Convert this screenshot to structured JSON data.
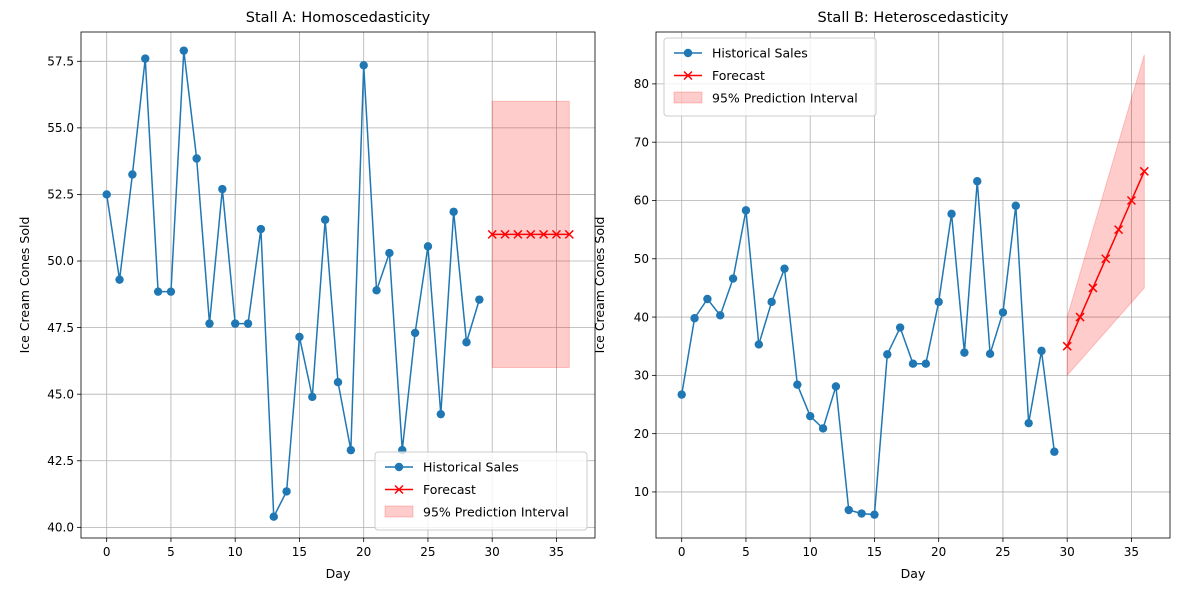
{
  "chart_data": [
    {
      "type": "line",
      "title": "Stall A: Homoscedasticity",
      "xlabel": "Day",
      "ylabel": "Ice Cream Cones Sold",
      "xlim": [
        -2,
        38
      ],
      "ylim": [
        39.6,
        58.6
      ],
      "xticks": [
        0,
        5,
        10,
        15,
        20,
        25,
        30,
        35
      ],
      "xtick_labels": [
        "0",
        "5",
        "10",
        "15",
        "20",
        "25",
        "30",
        "35"
      ],
      "yticks": [
        40.0,
        42.5,
        45.0,
        47.5,
        50.0,
        52.5,
        55.0,
        57.5
      ],
      "ytick_labels": [
        "40.0",
        "42.5",
        "45.0",
        "47.5",
        "50.0",
        "52.5",
        "55.0",
        "57.5"
      ],
      "grid": true,
      "legend_position": "lower-right",
      "series": [
        {
          "name": "Historical Sales",
          "kind": "line-circle",
          "color": "#1f77b4",
          "x": [
            0,
            1,
            2,
            3,
            4,
            5,
            6,
            7,
            8,
            9,
            10,
            11,
            12,
            13,
            14,
            15,
            16,
            17,
            18,
            19,
            20,
            21,
            22,
            23,
            24,
            25,
            26,
            27,
            28,
            29
          ],
          "y": [
            52.5,
            49.3,
            53.25,
            57.6,
            48.85,
            48.85,
            57.9,
            53.85,
            47.65,
            52.7,
            47.65,
            47.65,
            51.2,
            40.4,
            41.35,
            47.15,
            44.9,
            51.55,
            45.45,
            42.9,
            57.35,
            48.9,
            50.3,
            42.9,
            47.3,
            50.55,
            44.25,
            51.85,
            46.95,
            48.55
          ]
        },
        {
          "name": "Forecast",
          "kind": "line-x",
          "color": "#ff0000",
          "x": [
            30,
            31,
            32,
            33,
            34,
            35,
            36
          ],
          "y": [
            51,
            51,
            51,
            51,
            51,
            51,
            51
          ]
        },
        {
          "name": "95% Prediction Interval",
          "kind": "band",
          "color": "#ffcccc",
          "x": [
            30,
            31,
            32,
            33,
            34,
            35,
            36
          ],
          "lower": [
            46,
            46,
            46,
            46,
            46,
            46,
            46
          ],
          "upper": [
            56,
            56,
            56,
            56,
            56,
            56,
            56
          ]
        }
      ]
    },
    {
      "type": "line",
      "title": "Stall B: Heteroscedasticity",
      "xlabel": "Day",
      "ylabel": "Ice Cream Cones Sold",
      "xlim": [
        -2,
        38
      ],
      "ylim": [
        2.1,
        88.9
      ],
      "xticks": [
        0,
        5,
        10,
        15,
        20,
        25,
        30,
        35
      ],
      "xtick_labels": [
        "0",
        "5",
        "10",
        "15",
        "20",
        "25",
        "30",
        "35"
      ],
      "yticks": [
        10,
        20,
        30,
        40,
        50,
        60,
        70,
        80
      ],
      "ytick_labels": [
        "10",
        "20",
        "30",
        "40",
        "50",
        "60",
        "70",
        "80"
      ],
      "grid": true,
      "legend_position": "upper-left",
      "series": [
        {
          "name": "Historical Sales",
          "kind": "line-circle",
          "color": "#1f77b4",
          "x": [
            0,
            1,
            2,
            3,
            4,
            5,
            6,
            7,
            8,
            9,
            10,
            11,
            12,
            13,
            14,
            15,
            16,
            17,
            18,
            19,
            20,
            21,
            22,
            23,
            24,
            25,
            26,
            27,
            28,
            29
          ],
          "y": [
            26.7,
            39.8,
            43.1,
            40.3,
            46.6,
            58.3,
            35.3,
            42.6,
            48.3,
            28.4,
            23.0,
            20.9,
            28.1,
            6.9,
            6.3,
            6.1,
            33.6,
            38.2,
            32.0,
            32.0,
            42.6,
            57.7,
            33.9,
            63.3,
            33.7,
            40.8,
            59.1,
            21.8,
            34.2,
            16.9
          ]
        },
        {
          "name": "Forecast",
          "kind": "line-x",
          "color": "#ff0000",
          "x": [
            30,
            31,
            32,
            33,
            34,
            35,
            36
          ],
          "y": [
            35,
            40,
            45,
            50,
            55,
            60,
            65
          ]
        },
        {
          "name": "95% Prediction Interval",
          "kind": "band",
          "color": "#ffcccc",
          "x": [
            30,
            31,
            32,
            33,
            34,
            35,
            36
          ],
          "lower": [
            30,
            32.5,
            35,
            37.5,
            40,
            42.5,
            45
          ],
          "upper": [
            40,
            47.5,
            55,
            62.5,
            70,
            77.5,
            85
          ]
        }
      ]
    }
  ]
}
